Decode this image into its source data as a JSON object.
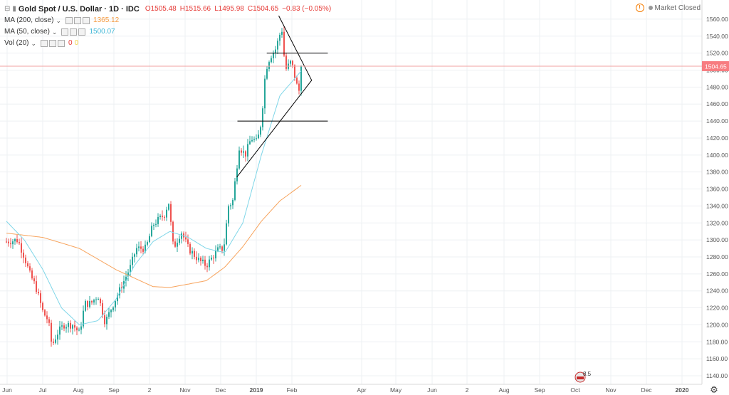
{
  "legend": {
    "title": "Gold Spot / U.S. Dollar · 1D · IDC",
    "open": "O1505.48",
    "high": "H1515.66",
    "low": "L1495.98",
    "close": "C1504.65",
    "change": "−0.83 (−0.05%)",
    "ma200_label": "MA (200, close)",
    "ma200_value": "1365.12",
    "ma50_label": "MA (50, close)",
    "ma50_value": "1500.07",
    "vol_label": "Vol (20)",
    "vol_value": "0"
  },
  "status": {
    "text": "Market Closed"
  },
  "price_tag": "1504.65",
  "event_badge": "8.5",
  "colors": {
    "up": "#26a69a",
    "down": "#ef5350",
    "ma200": "#f7a35c",
    "ma50": "#7fd6e8",
    "price_line": "#f2a0a0",
    "price_tag": "#f77c80",
    "grid": "#eef0f3",
    "axis_text": "#555"
  },
  "chart_data": {
    "type": "candlestick",
    "symbol": "Gold Spot / U.S. Dollar",
    "interval": "1D",
    "ylim": [
      1140,
      1570
    ],
    "yticks": [
      1140,
      1160,
      1180,
      1200,
      1220,
      1240,
      1260,
      1280,
      1300,
      1320,
      1340,
      1360,
      1380,
      1400,
      1420,
      1440,
      1460,
      1480,
      1500,
      1520,
      1540,
      1560
    ],
    "xticks": [
      "Jun",
      "Jul",
      "Aug",
      "Sep",
      "2",
      "Nov",
      "Dec",
      "2019",
      "Feb",
      "Apr",
      "May",
      "Jun",
      "2",
      "Aug",
      "Sep",
      "Oct",
      "Nov",
      "Dec",
      "2020"
    ],
    "last_price": 1504.65,
    "price_keypoints": [
      [
        "2018-06-01",
        1298
      ],
      [
        "2018-06-20",
        1300
      ],
      [
        "2018-07-01",
        1280
      ],
      [
        "2018-07-10",
        1260
      ],
      [
        "2018-07-20",
        1245
      ],
      [
        "2018-08-01",
        1215
      ],
      [
        "2018-08-10",
        1205
      ],
      [
        "2018-08-16",
        1175
      ],
      [
        "2018-08-25",
        1190
      ],
      [
        "2018-09-05",
        1200
      ],
      [
        "2018-09-20",
        1200
      ],
      [
        "2018-10-01",
        1190
      ],
      [
        "2018-10-10",
        1225
      ],
      [
        "2018-10-20",
        1225
      ],
      [
        "2018-11-01",
        1235
      ],
      [
        "2018-11-13",
        1203
      ],
      [
        "2018-11-25",
        1222
      ],
      [
        "2018-12-10",
        1245
      ],
      [
        "2018-12-25",
        1268
      ],
      [
        "2019-01-04",
        1290
      ],
      [
        "2019-01-20",
        1290
      ],
      [
        "2019-02-01",
        1318
      ],
      [
        "2019-02-20",
        1330
      ],
      [
        "2019-02-27",
        1345
      ],
      [
        "2019-03-07",
        1290
      ],
      [
        "2019-03-20",
        1310
      ],
      [
        "2019-04-01",
        1290
      ],
      [
        "2019-04-20",
        1275
      ],
      [
        "2019-05-01",
        1270
      ],
      [
        "2019-05-20",
        1288
      ],
      [
        "2019-05-30",
        1290
      ],
      [
        "2019-06-07",
        1340
      ],
      [
        "2019-06-14",
        1345
      ],
      [
        "2019-06-25",
        1410
      ],
      [
        "2019-07-05",
        1400
      ],
      [
        "2019-07-15",
        1420
      ],
      [
        "2019-07-25",
        1415
      ],
      [
        "2019-08-01",
        1440
      ],
      [
        "2019-08-08",
        1500
      ],
      [
        "2019-08-15",
        1515
      ],
      [
        "2019-08-25",
        1525
      ],
      [
        "2019-09-04",
        1550
      ],
      [
        "2019-09-10",
        1500
      ],
      [
        "2019-09-20",
        1510
      ],
      [
        "2019-09-30",
        1480
      ],
      [
        "2019-10-01",
        1465
      ],
      [
        "2019-10-08",
        1505
      ]
    ],
    "ma200_keypoints": [
      [
        "2018-06-01",
        1308
      ],
      [
        "2018-08-01",
        1303
      ],
      [
        "2018-10-01",
        1290
      ],
      [
        "2018-12-01",
        1265
      ],
      [
        "2019-02-01",
        1245
      ],
      [
        "2019-03-01",
        1244
      ],
      [
        "2019-04-01",
        1248
      ],
      [
        "2019-05-01",
        1252
      ],
      [
        "2019-06-01",
        1268
      ],
      [
        "2019-07-01",
        1292
      ],
      [
        "2019-08-01",
        1322
      ],
      [
        "2019-09-01",
        1346
      ],
      [
        "2019-10-08",
        1365.12
      ]
    ],
    "ma50_keypoints": [
      [
        "2018-06-01",
        1322
      ],
      [
        "2018-07-01",
        1300
      ],
      [
        "2018-08-01",
        1265
      ],
      [
        "2018-09-01",
        1220
      ],
      [
        "2018-10-01",
        1200
      ],
      [
        "2018-11-01",
        1205
      ],
      [
        "2018-12-01",
        1230
      ],
      [
        "2019-01-01",
        1270
      ],
      [
        "2019-02-01",
        1298
      ],
      [
        "2019-03-01",
        1310
      ],
      [
        "2019-04-01",
        1303
      ],
      [
        "2019-05-01",
        1290
      ],
      [
        "2019-06-01",
        1285
      ],
      [
        "2019-07-01",
        1320
      ],
      [
        "2019-08-01",
        1400
      ],
      [
        "2019-09-01",
        1470
      ],
      [
        "2019-10-08",
        1500.07
      ]
    ],
    "drawings": {
      "triangle_upper": [
        [
          "2019-08-30",
          1564
        ],
        [
          "2019-10-24",
          1488
        ]
      ],
      "triangle_lower": [
        [
          "2019-06-21",
          1374
        ],
        [
          "2019-10-24",
          1488
        ]
      ],
      "resistance_high": {
        "from": "2019-08-10",
        "to": "2019-11-20",
        "price": 1520
      },
      "resistance_low": {
        "from": "2019-06-22",
        "to": "2019-11-20",
        "price": 1440
      }
    }
  }
}
